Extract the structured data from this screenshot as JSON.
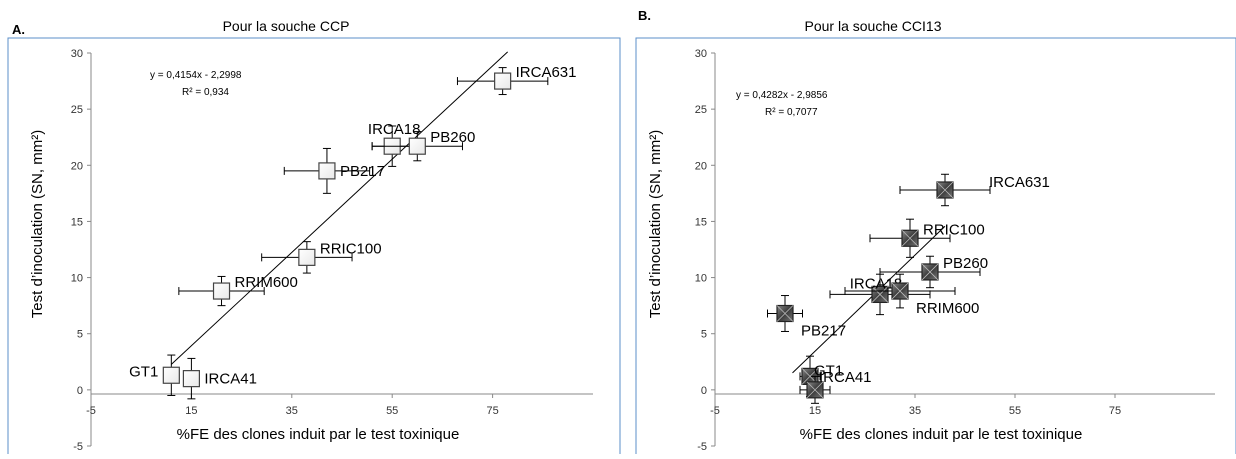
{
  "chart_data": [
    {
      "type": "scatter",
      "panel_label": "A.",
      "title": "Pour la souche CCP",
      "xlabel": "%FE des clones induit par le test toxinique",
      "ylabel": "Test d’inoculation (SN, mm²)",
      "xlim": [
        -5,
        95
      ],
      "ylim": [
        -5,
        30
      ],
      "xticks": [
        -5,
        15,
        35,
        55,
        75
      ],
      "yticks": [
        -5,
        0,
        5,
        10,
        15,
        20,
        25,
        30
      ],
      "equation": "y = 0,4154x - 2,2998",
      "r2": "R² = 0,934",
      "trendline": {
        "slope": 0.4154,
        "intercept": -2.2998,
        "x_range": [
          11,
          78
        ]
      },
      "marker": "open-square",
      "points": [
        {
          "label": "GT1",
          "x": 11,
          "y": 1.3,
          "xerr": 0,
          "yerr": 1.8,
          "label_side": "left"
        },
        {
          "label": "IRCA41",
          "x": 15,
          "y": 1.0,
          "xerr": 0,
          "yerr": 1.8,
          "label_side": "right"
        },
        {
          "label": "RRIM600",
          "x": 21,
          "y": 8.8,
          "xerr": 8.5,
          "yerr": 1.3,
          "label_side": "right-up"
        },
        {
          "label": "RRIC100",
          "x": 38,
          "y": 11.8,
          "xerr": 9,
          "yerr": 1.4,
          "label_side": "right-up"
        },
        {
          "label": "PB217",
          "x": 42,
          "y": 19.5,
          "xerr": 8.5,
          "yerr": 2.0,
          "label_side": "right"
        },
        {
          "label": "IRCA18",
          "x": 55,
          "y": 21.7,
          "xerr": 4,
          "yerr": 1.8,
          "label_side": "up"
        },
        {
          "label": "PB260",
          "x": 60,
          "y": 21.7,
          "xerr": 9,
          "yerr": 1.3,
          "label_side": "right-up"
        },
        {
          "label": "IRCA631",
          "x": 77,
          "y": 27.5,
          "xerr": 9,
          "yerr": 1.2,
          "label_side": "right-up"
        }
      ]
    },
    {
      "type": "scatter",
      "panel_label": "B.",
      "title": "Pour la souche CCI13",
      "xlabel": "%FE des clones induit par le test toxinique",
      "ylabel": "Test d’inoculation (SN, mm²)",
      "xlim": [
        -5,
        95
      ],
      "ylim": [
        -5,
        30
      ],
      "xticks": [
        -5,
        15,
        35,
        55,
        75
      ],
      "yticks": [
        -5,
        0,
        5,
        10,
        15,
        20,
        25,
        30
      ],
      "equation": "y = 0,4282x - 2,9856",
      "r2": "R² = 0,7077",
      "trendline": {
        "slope": 0.4282,
        "intercept": -2.9856,
        "x_range": [
          10.5,
          41
        ]
      },
      "marker": "filled-square",
      "points": [
        {
          "label": "PB217",
          "x": 9,
          "y": 6.8,
          "xerr": 3.5,
          "yerr": 1.6,
          "label_side": "below-right"
        },
        {
          "label": "GT1",
          "x": 14,
          "y": 1.2,
          "xerr": 2,
          "yerr": 1.8,
          "label_side": "below-right"
        },
        {
          "label": "IRCA41",
          "x": 15,
          "y": 0,
          "xerr": 3,
          "yerr": 1.2,
          "label_side": "below-right"
        },
        {
          "label": "IRCA18",
          "x": 28,
          "y": 8.5,
          "xerr": 10,
          "yerr": 1.8,
          "label_side": "left-up"
        },
        {
          "label": "RRIM600",
          "x": 32,
          "y": 8.8,
          "xerr": 11,
          "yerr": 1.5,
          "label_side": "below-right"
        },
        {
          "label": "RRIC100",
          "x": 34,
          "y": 13.5,
          "xerr": 8,
          "yerr": 1.7,
          "label_side": "right-up"
        },
        {
          "label": "PB260",
          "x": 38,
          "y": 10.5,
          "xerr": 10,
          "yerr": 1.4,
          "label_side": "right-up"
        },
        {
          "label": "IRCA631",
          "x": 41,
          "y": 17.8,
          "xerr": 9,
          "yerr": 1.4,
          "label_side": "right"
        }
      ]
    }
  ]
}
